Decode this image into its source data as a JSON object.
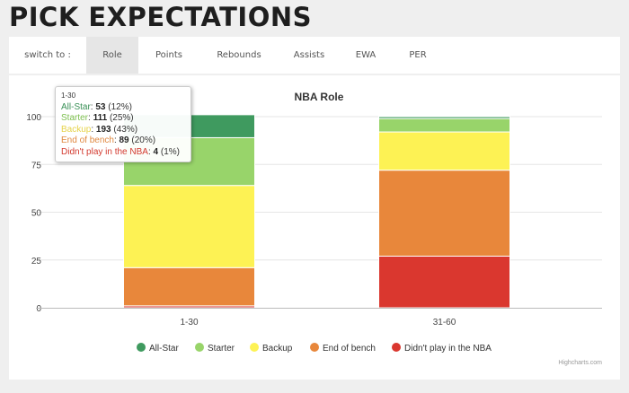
{
  "page_title": "PICK EXPECTATIONS",
  "tabs": {
    "prefix": "switch to :",
    "items": [
      "Role",
      "Points",
      "Rebounds",
      "Assists",
      "EWA",
      "PER"
    ],
    "active": "Role"
  },
  "credit": "Highcharts.com",
  "tooltip": {
    "header": "1-30",
    "rows": [
      {
        "name": "All-Star",
        "count": "53",
        "pct": "(12%)",
        "color": "#3a9157"
      },
      {
        "name": "Starter",
        "count": "111",
        "pct": "(25%)",
        "color": "#7cbf4e"
      },
      {
        "name": "Backup",
        "count": "193",
        "pct": "(43%)",
        "color": "#e6d34a"
      },
      {
        "name": "End of bench",
        "count": "89",
        "pct": "(20%)",
        "color": "#e08840"
      },
      {
        "name": "Didn't play in the NBA",
        "count": "4",
        "pct": "(1%)",
        "color": "#d33a2f"
      }
    ]
  },
  "chart_data": {
    "type": "bar",
    "stacked": true,
    "stacking": "percent",
    "title": "NBA Role",
    "categories": [
      "1-30",
      "31-60"
    ],
    "ylim": [
      0,
      100
    ],
    "yticks": [
      0,
      25,
      50,
      75,
      100
    ],
    "grid": true,
    "legend": "bottom",
    "series": [
      {
        "name": "All-Star",
        "color": "#3f9a5f",
        "values": [
          12,
          1
        ]
      },
      {
        "name": "Starter",
        "color": "#98d46a",
        "values": [
          25,
          7
        ]
      },
      {
        "name": "Backup",
        "color": "#fdf254",
        "values": [
          43,
          20
        ]
      },
      {
        "name": "End of bench",
        "color": "#e8873b",
        "values": [
          20,
          45
        ]
      },
      {
        "name": "Didn't play in the NBA",
        "color": "#da372f",
        "values": [
          1,
          27
        ]
      }
    ]
  }
}
